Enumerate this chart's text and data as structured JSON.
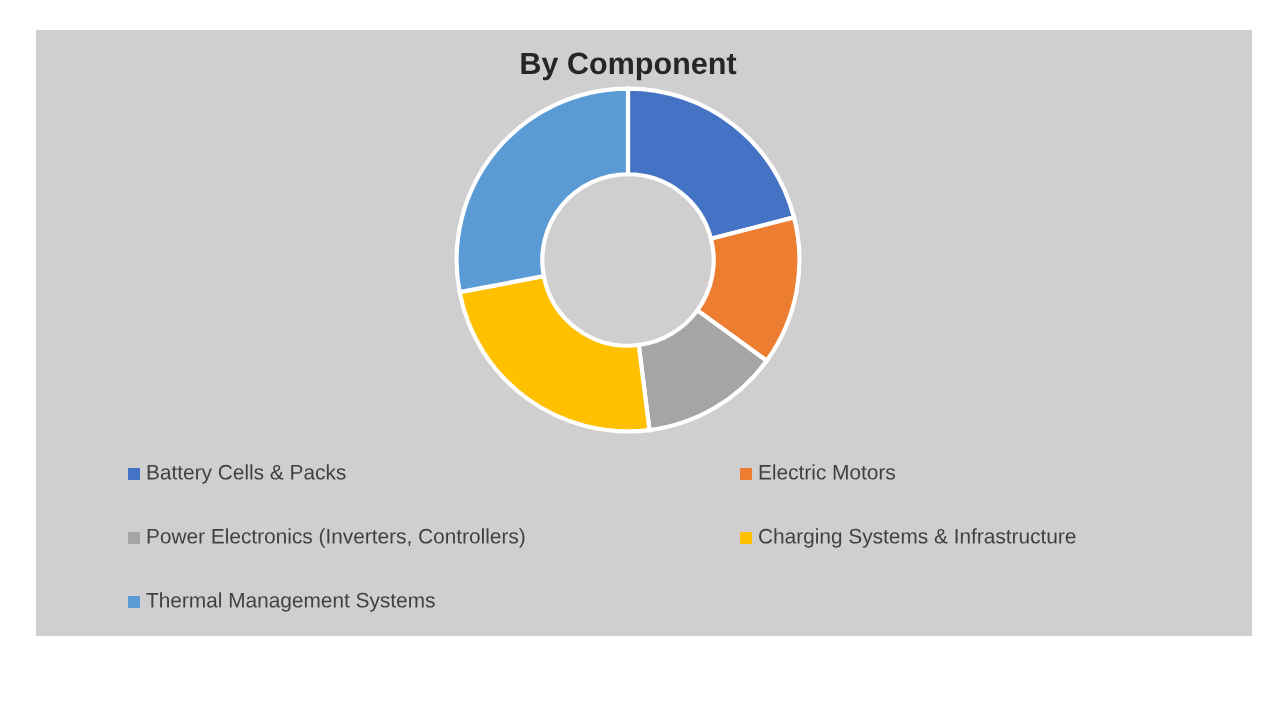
{
  "chart_data": {
    "type": "donut",
    "title": "By Component",
    "categories": [
      "Battery Cells & Packs",
      "Electric Motors",
      "Power Electronics (Inverters, Controllers)",
      "Charging Systems & Infrastructure",
      "Thermal Management Systems"
    ],
    "values": [
      21,
      14,
      13,
      24,
      28
    ],
    "colors": [
      "#4472c4",
      "#ed7d31",
      "#a5a5a5",
      "#ffc000",
      "#5b9bd5"
    ],
    "legend": "bottom"
  }
}
